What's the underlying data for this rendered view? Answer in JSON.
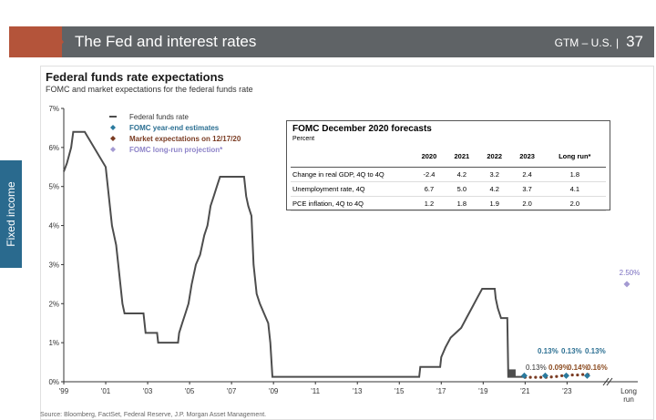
{
  "header": {
    "title": "The Fed and interest rates",
    "gtm": "GTM – U.S.",
    "page": "37"
  },
  "side_tab": "Fixed income",
  "chart": {
    "title": "Federal funds rate expectations",
    "subtitle": "FOMC and market expectations for the federal funds rate"
  },
  "source": "Source: Bloomberg, FactSet, Federal Reserve, J.P. Morgan Asset Management.",
  "colors": {
    "fed_funds": "#4d4d4d",
    "fomc_estimates": "#2b7a9e",
    "market": "#7a3b22",
    "long_run": "#a49ad2",
    "header": "#5f6366",
    "accent": "#b4543a"
  },
  "forecast_table": {
    "title": "FOMC December 2020 forecasts",
    "unit": "Percent",
    "columns": [
      "2020",
      "2021",
      "2022",
      "2023",
      "Long run*"
    ],
    "rows": [
      {
        "label": "Change in real GDP, 4Q to 4Q",
        "values": [
          "-2.4",
          "4.2",
          "3.2",
          "2.4",
          "1.8"
        ]
      },
      {
        "label": "Unemployment rate, 4Q",
        "values": [
          "6.7",
          "5.0",
          "4.2",
          "3.7",
          "4.1"
        ]
      },
      {
        "label": "PCE inflation, 4Q to 4Q",
        "values": [
          "1.2",
          "1.8",
          "1.9",
          "2.0",
          "2.0"
        ]
      }
    ]
  },
  "chart_data": {
    "type": "line",
    "title": "Federal funds rate expectations",
    "subtitle": "FOMC and market expectations for the federal funds rate",
    "y_ticks": [
      "0%",
      "1%",
      "2%",
      "3%",
      "4%",
      "5%",
      "6%",
      "7%"
    ],
    "ylim": [
      0,
      7
    ],
    "x_ticks": [
      "'99",
      "'01",
      "'03",
      "'05",
      "'07",
      "'09",
      "'11",
      "'13",
      "'15",
      "'17",
      "'19",
      "'21",
      "'23",
      "Long run"
    ],
    "legend": [
      "Federal funds rate",
      "FOMC year-end estimates",
      "Market expectations on 12/17/20",
      "FOMC long-run projection*"
    ],
    "legend_placement": "top-left",
    "grid": false,
    "series": [
      {
        "name": "Federal funds rate",
        "type": "step-line",
        "points": [
          [
            1999.0,
            5.38
          ],
          [
            1999.15,
            5.6
          ],
          [
            1999.35,
            6.0
          ],
          [
            1999.45,
            6.4
          ],
          [
            2000.0,
            6.4
          ],
          [
            2001.0,
            5.5
          ],
          [
            2001.1,
            5.0
          ],
          [
            2001.2,
            4.5
          ],
          [
            2001.3,
            4.0
          ],
          [
            2001.4,
            3.75
          ],
          [
            2001.5,
            3.5
          ],
          [
            2001.6,
            3.0
          ],
          [
            2001.7,
            2.5
          ],
          [
            2001.8,
            2.0
          ],
          [
            2001.9,
            1.75
          ],
          [
            2002.0,
            1.75
          ],
          [
            2002.8,
            1.75
          ],
          [
            2002.9,
            1.25
          ],
          [
            2003.45,
            1.25
          ],
          [
            2003.5,
            1.0
          ],
          [
            2004.45,
            1.0
          ],
          [
            2004.5,
            1.25
          ],
          [
            2004.65,
            1.5
          ],
          [
            2004.8,
            1.75
          ],
          [
            2004.95,
            2.0
          ],
          [
            2005.1,
            2.5
          ],
          [
            2005.3,
            3.0
          ],
          [
            2005.5,
            3.25
          ],
          [
            2005.7,
            3.75
          ],
          [
            2005.85,
            4.0
          ],
          [
            2006.0,
            4.5
          ],
          [
            2006.15,
            4.75
          ],
          [
            2006.3,
            5.0
          ],
          [
            2006.45,
            5.25
          ],
          [
            2007.6,
            5.25
          ],
          [
            2007.7,
            4.75
          ],
          [
            2007.8,
            4.5
          ],
          [
            2007.95,
            4.25
          ],
          [
            2008.05,
            3.0
          ],
          [
            2008.2,
            2.25
          ],
          [
            2008.35,
            2.0
          ],
          [
            2008.75,
            1.5
          ],
          [
            2008.85,
            1.0
          ],
          [
            2008.95,
            0.125
          ],
          [
            2015.95,
            0.125
          ],
          [
            2016.0,
            0.38
          ],
          [
            2016.95,
            0.38
          ],
          [
            2017.0,
            0.63
          ],
          [
            2017.2,
            0.88
          ],
          [
            2017.45,
            1.13
          ],
          [
            2017.95,
            1.38
          ],
          [
            2018.2,
            1.63
          ],
          [
            2018.45,
            1.88
          ],
          [
            2018.7,
            2.13
          ],
          [
            2018.95,
            2.38
          ],
          [
            2019.55,
            2.38
          ],
          [
            2019.6,
            2.13
          ],
          [
            2019.7,
            1.88
          ],
          [
            2019.85,
            1.63
          ],
          [
            2020.15,
            1.63
          ],
          [
            2020.2,
            0.125
          ],
          [
            2020.96,
            0.125
          ]
        ]
      },
      {
        "name": "FOMC year-end estimates",
        "type": "scatter",
        "points": [
          [
            2020.96,
            0.13
          ],
          [
            2021.96,
            0.13
          ],
          [
            2022.96,
            0.13
          ],
          [
            2023.96,
            0.13
          ]
        ],
        "labels": [
          "0.13%",
          "0.13%",
          "0.13%",
          "0.13%"
        ]
      },
      {
        "name": "Market expectations on 12/17/20",
        "type": "dotted-line",
        "points": [
          [
            2021.0,
            0.09
          ],
          [
            2021.25,
            0.09
          ],
          [
            2021.5,
            0.09
          ],
          [
            2021.75,
            0.09
          ],
          [
            2022.0,
            0.09
          ],
          [
            2022.25,
            0.1
          ],
          [
            2022.5,
            0.11
          ],
          [
            2022.75,
            0.13
          ],
          [
            2023.0,
            0.14
          ],
          [
            2023.25,
            0.15
          ],
          [
            2023.5,
            0.15
          ],
          [
            2023.75,
            0.16
          ],
          [
            2024.0,
            0.16
          ]
        ],
        "labels": [
          "0.09%",
          "0.14%",
          "0.16%"
        ]
      },
      {
        "name": "FOMC long-run projection*",
        "type": "scatter",
        "points": [
          [
            "Long run",
            2.5
          ]
        ],
        "labels": [
          "2.50%"
        ]
      }
    ],
    "annotations": [
      {
        "label": "0.13%",
        "x": 2020.5,
        "y": 0.13,
        "note": "current rate label"
      }
    ]
  }
}
